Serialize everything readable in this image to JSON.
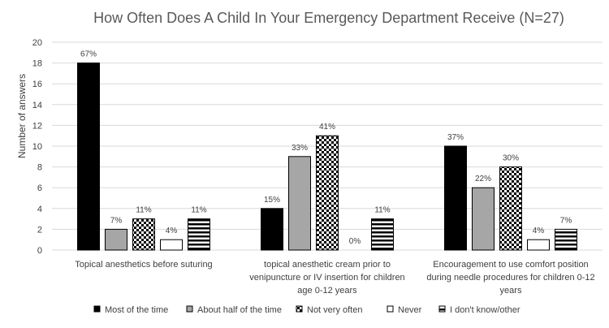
{
  "chart_data": {
    "type": "bar",
    "title": "How Often Does A Child In Your Emergency Department Receive (N=27)",
    "xlabel": "",
    "ylabel": "Number of answers",
    "ylim": [
      0,
      20
    ],
    "yticks": [
      0,
      2,
      4,
      6,
      8,
      10,
      12,
      14,
      16,
      18,
      20
    ],
    "grid": true,
    "legend_position": "bottom",
    "categories": [
      [
        "Topical anesthetics before suturing"
      ],
      [
        "topical anesthetic cream prior to",
        "venipuncture or IV insertion for children",
        "age 0-12 years"
      ],
      [
        "Encouragement to use comfort position",
        "during needle procedures for children 0-12",
        "years"
      ]
    ],
    "series": [
      {
        "name": "Most of the time",
        "pattern": "solid-black",
        "values": [
          18,
          4,
          10
        ],
        "labels": [
          "67%",
          "15%",
          "37%"
        ]
      },
      {
        "name": "About half of the time",
        "pattern": "solid-gray",
        "values": [
          2,
          9,
          6
        ],
        "labels": [
          "7%",
          "33%",
          "22%"
        ]
      },
      {
        "name": "Not very often",
        "pattern": "checker",
        "values": [
          3,
          11,
          8
        ],
        "labels": [
          "11%",
          "41%",
          "30%"
        ]
      },
      {
        "name": "Never",
        "pattern": "white",
        "values": [
          1,
          0,
          1
        ],
        "labels": [
          "4%",
          "0%",
          "4%"
        ]
      },
      {
        "name": "I don't know/other",
        "pattern": "hstripes",
        "values": [
          3,
          3,
          2
        ],
        "labels": [
          "11%",
          "11%",
          "7%"
        ]
      }
    ],
    "colors": {
      "black": "#000000",
      "gray": "#a6a6a6",
      "white": "#ffffff",
      "grid": "#d9d9d9",
      "text": "#404040",
      "title": "#595959"
    }
  }
}
